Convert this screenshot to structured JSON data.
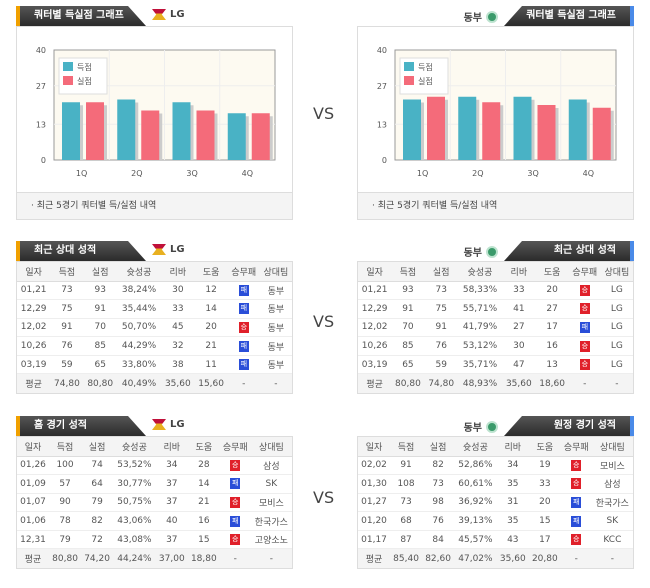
{
  "vs": "VS",
  "legend": {
    "scored": "득점",
    "conceded": "실점"
  },
  "colors": {
    "scored": "#49b2c5",
    "conceded": "#f46b7a",
    "win": "#e0202a",
    "loss": "#2a4ed8"
  },
  "charts": {
    "left": {
      "title": "쿼터별 득실점 그래프",
      "team": "LG",
      "footer": "·  최근 5경기 쿼터별 득/실점 내역"
    },
    "right": {
      "title": "쿼터별 득실점 그래프",
      "team": "동부",
      "footer": "·  최근 5경기 쿼터별 득/실점 내역"
    }
  },
  "chart_data": [
    {
      "type": "bar",
      "team": "LG",
      "categories": [
        "1Q",
        "2Q",
        "3Q",
        "4Q"
      ],
      "ylim": [
        0,
        40
      ],
      "yticks": [
        "0",
        "13",
        "27",
        "40"
      ],
      "series": [
        {
          "name": "득점",
          "values": [
            21,
            22,
            21,
            17
          ]
        },
        {
          "name": "실점",
          "values": [
            21,
            18,
            18,
            17
          ]
        }
      ],
      "legend": "top-left"
    },
    {
      "type": "bar",
      "team": "동부",
      "categories": [
        "1Q",
        "2Q",
        "3Q",
        "4Q"
      ],
      "ylim": [
        0,
        40
      ],
      "yticks": [
        "0",
        "13",
        "27",
        "40"
      ],
      "series": [
        {
          "name": "득점",
          "values": [
            22,
            23,
            23,
            22
          ]
        },
        {
          "name": "실점",
          "values": [
            23,
            21,
            20,
            19
          ]
        }
      ],
      "legend": "top-left"
    }
  ],
  "columns": [
    "일자",
    "득점",
    "실점",
    "슛성공",
    "리바",
    "도움",
    "승무패",
    "상대팀"
  ],
  "tables": {
    "recent_left": {
      "title": "최근 상대 성적",
      "team": "LG",
      "rows": [
        [
          "01,21",
          "73",
          "93",
          "38,24%",
          "30",
          "12",
          "패",
          "동부"
        ],
        [
          "12,29",
          "75",
          "91",
          "35,44%",
          "33",
          "14",
          "패",
          "동부"
        ],
        [
          "12,02",
          "91",
          "70",
          "50,70%",
          "45",
          "20",
          "승",
          "동부"
        ],
        [
          "10,26",
          "76",
          "85",
          "44,29%",
          "32",
          "21",
          "패",
          "동부"
        ],
        [
          "03,19",
          "59",
          "65",
          "33,80%",
          "38",
          "11",
          "패",
          "동부"
        ]
      ],
      "avg": [
        "평균",
        "74,80",
        "80,80",
        "40,49%",
        "35,60",
        "15,60",
        "-",
        "-"
      ]
    },
    "recent_right": {
      "title": "최근 상대 성적",
      "team": "동부",
      "rows": [
        [
          "01,21",
          "93",
          "73",
          "58,33%",
          "33",
          "20",
          "승",
          "LG"
        ],
        [
          "12,29",
          "91",
          "75",
          "55,71%",
          "41",
          "27",
          "승",
          "LG"
        ],
        [
          "12,02",
          "70",
          "91",
          "41,79%",
          "27",
          "17",
          "패",
          "LG"
        ],
        [
          "10,26",
          "85",
          "76",
          "53,12%",
          "30",
          "16",
          "승",
          "LG"
        ],
        [
          "03,19",
          "65",
          "59",
          "35,71%",
          "47",
          "13",
          "승",
          "LG"
        ]
      ],
      "avg": [
        "평균",
        "80,80",
        "74,80",
        "48,93%",
        "35,60",
        "18,60",
        "-",
        "-"
      ]
    },
    "home_left": {
      "title": "홈 경기 성적",
      "team": "LG",
      "rows": [
        [
          "01,26",
          "100",
          "74",
          "53,52%",
          "34",
          "28",
          "승",
          "삼성"
        ],
        [
          "01,09",
          "57",
          "64",
          "30,77%",
          "37",
          "14",
          "패",
          "SK"
        ],
        [
          "01,07",
          "90",
          "79",
          "50,75%",
          "37",
          "21",
          "승",
          "모비스"
        ],
        [
          "01,06",
          "78",
          "82",
          "43,06%",
          "40",
          "16",
          "패",
          "한국가스"
        ],
        [
          "12,31",
          "79",
          "72",
          "43,08%",
          "37",
          "15",
          "승",
          "고양소노"
        ]
      ],
      "avg": [
        "평균",
        "80,80",
        "74,20",
        "44,24%",
        "37,00",
        "18,80",
        "-",
        "-"
      ]
    },
    "away_right": {
      "title": "원정 경기 성적",
      "team": "동부",
      "rows": [
        [
          "02,02",
          "91",
          "82",
          "52,86%",
          "34",
          "19",
          "승",
          "모비스"
        ],
        [
          "01,30",
          "108",
          "73",
          "60,61%",
          "35",
          "33",
          "승",
          "삼성"
        ],
        [
          "01,27",
          "73",
          "98",
          "36,92%",
          "31",
          "20",
          "패",
          "한국가스"
        ],
        [
          "01,20",
          "68",
          "76",
          "39,13%",
          "35",
          "15",
          "패",
          "SK"
        ],
        [
          "01,17",
          "87",
          "84",
          "45,57%",
          "43",
          "17",
          "승",
          "KCC"
        ]
      ],
      "avg": [
        "평균",
        "85,40",
        "82,60",
        "47,02%",
        "35,60",
        "20,80",
        "-",
        "-"
      ]
    }
  }
}
